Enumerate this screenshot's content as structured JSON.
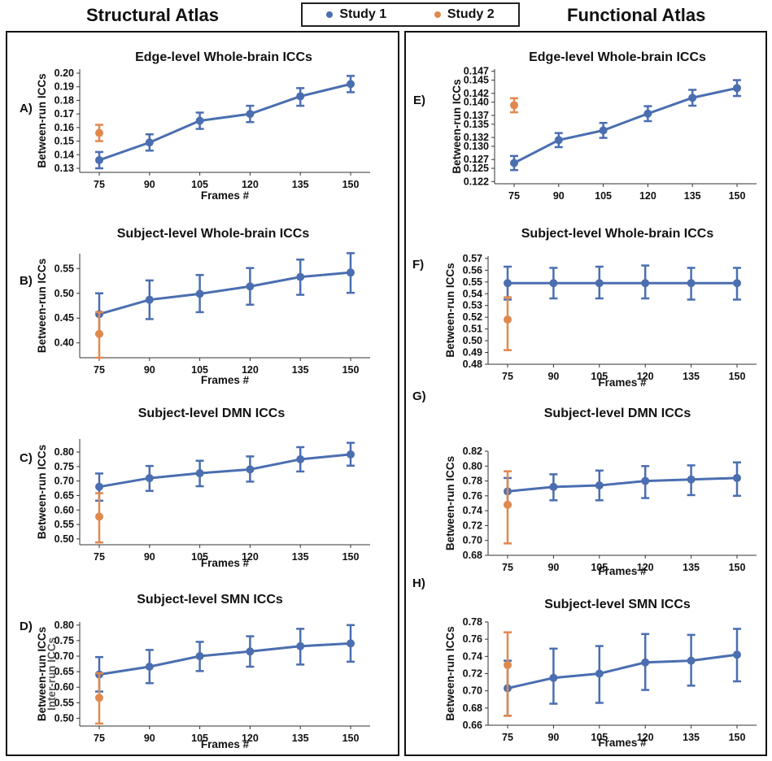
{
  "header": {
    "left_title": "Structural Atlas",
    "right_title": "Functional Atlas",
    "legend": [
      {
        "label": "Study 1",
        "color": "#4a6eb0"
      },
      {
        "label": "Study 2",
        "color": "#e0894f"
      }
    ]
  },
  "chart_data": [
    {
      "id": "A",
      "panel_label": "A)",
      "type": "line",
      "title": "Edge-level Whole-brain  ICCs",
      "xlabel": "Frames #",
      "ylabel": "Between-run ICCs",
      "x": [
        75,
        90,
        105,
        120,
        135,
        150
      ],
      "yticks": [
        "0.13",
        "0.14",
        "0.15",
        "0.16",
        "0.17",
        "0.18",
        "0.19",
        "0.20"
      ],
      "ylim": [
        0.127,
        0.203
      ],
      "series": [
        {
          "name": "Study 1",
          "color": "#4a6eb0",
          "values": [
            0.136,
            0.149,
            0.165,
            0.17,
            0.183,
            0.192
          ],
          "err_low": [
            0.13,
            0.143,
            0.159,
            0.164,
            0.176,
            0.186
          ],
          "err_high": [
            0.142,
            0.155,
            0.171,
            0.176,
            0.189,
            0.198
          ]
        },
        {
          "name": "Study 2",
          "color": "#e0894f",
          "x": [
            75
          ],
          "values": [
            0.156
          ],
          "err_low": [
            0.15
          ],
          "err_high": [
            0.162
          ]
        }
      ]
    },
    {
      "id": "B",
      "panel_label": "B)",
      "type": "line",
      "title": "Subject-level Whole-brain  ICCs",
      "xlabel": "Frames #",
      "ylabel": "Between-run ICCs",
      "x": [
        75,
        90,
        105,
        120,
        135,
        150
      ],
      "yticks": [
        "0.40",
        "0.45",
        "0.50",
        "0.55"
      ],
      "ylim": [
        0.37,
        0.58
      ],
      "series": [
        {
          "name": "Study 1",
          "color": "#4a6eb0",
          "values": [
            0.458,
            0.487,
            0.499,
            0.514,
            0.533,
            0.542
          ],
          "err_low": [
            0.418,
            0.448,
            0.462,
            0.477,
            0.497,
            0.501
          ],
          "err_high": [
            0.5,
            0.526,
            0.537,
            0.551,
            0.568,
            0.581
          ]
        },
        {
          "name": "Study 2",
          "color": "#e0894f",
          "x": [
            75
          ],
          "values": [
            0.418
          ],
          "err_low": [
            0.37
          ],
          "err_high": [
            0.462
          ]
        }
      ]
    },
    {
      "id": "C",
      "panel_label": "C)",
      "type": "line",
      "title": "Subject-level DMN  ICCs",
      "xlabel": "Frames #",
      "ylabel": "Between-run ICCs",
      "x": [
        75,
        90,
        105,
        120,
        135,
        150
      ],
      "yticks": [
        "0.50",
        "0.55",
        "0.60",
        "0.65",
        "0.70",
        "0.75",
        "0.80"
      ],
      "ylim": [
        0.48,
        0.845
      ],
      "series": [
        {
          "name": "Study 1",
          "color": "#4a6eb0",
          "values": [
            0.68,
            0.71,
            0.727,
            0.74,
            0.775,
            0.792
          ],
          "err_low": [
            0.632,
            0.666,
            0.682,
            0.698,
            0.733,
            0.753
          ],
          "err_high": [
            0.726,
            0.752,
            0.77,
            0.785,
            0.817,
            0.832
          ]
        },
        {
          "name": "Study 2",
          "color": "#e0894f",
          "x": [
            75
          ],
          "values": [
            0.577
          ],
          "err_low": [
            0.488
          ],
          "err_high": [
            0.658
          ]
        }
      ]
    },
    {
      "id": "D",
      "panel_label": "D)",
      "type": "line",
      "title": "Subject-level SMN  ICCs",
      "xlabel": "Frames #",
      "ylabel": "Between-run ICCs",
      "ylabel_overlay": "Inter-run ICCs",
      "x": [
        75,
        90,
        105,
        120,
        135,
        150
      ],
      "yticks": [
        "0.50",
        "0.55",
        "0.60",
        "0.65",
        "0.70",
        "0.75",
        "0.80"
      ],
      "ylim": [
        0.475,
        0.81
      ],
      "series": [
        {
          "name": "Study 1",
          "color": "#4a6eb0",
          "values": [
            0.641,
            0.666,
            0.7,
            0.715,
            0.732,
            0.741
          ],
          "err_low": [
            0.586,
            0.613,
            0.652,
            0.666,
            0.673,
            0.682
          ],
          "err_high": [
            0.697,
            0.72,
            0.746,
            0.764,
            0.788,
            0.8
          ]
        },
        {
          "name": "Study 2",
          "color": "#e0894f",
          "x": [
            75
          ],
          "values": [
            0.566
          ],
          "err_low": [
            0.483
          ],
          "err_high": [
            0.645
          ]
        }
      ]
    },
    {
      "id": "E",
      "panel_label": "E)",
      "type": "line",
      "title": "Edge-level Whole-brain  ICCs",
      "xlabel": "",
      "ylabel": "Between-run ICCs",
      "x": [
        75,
        90,
        105,
        120,
        135,
        150
      ],
      "yticks": [
        "0.122",
        "0.125",
        "0.127",
        "0.130",
        "0.132",
        "0.135",
        "0.137",
        "0.140",
        "0.142",
        "0.145",
        "0.147"
      ],
      "ylim": [
        0.1215,
        0.1475
      ],
      "series": [
        {
          "name": "Study 1",
          "color": "#4a6eb0",
          "values": [
            0.1262,
            0.1314,
            0.1336,
            0.1374,
            0.141,
            0.1432
          ],
          "err_low": [
            0.1246,
            0.1298,
            0.1319,
            0.1357,
            0.1392,
            0.1414
          ],
          "err_high": [
            0.1278,
            0.133,
            0.1353,
            0.1391,
            0.1428,
            0.145
          ]
        },
        {
          "name": "Study 2",
          "color": "#e0894f",
          "x": [
            75
          ],
          "values": [
            0.1393
          ],
          "err_low": [
            0.1377
          ],
          "err_high": [
            0.1409
          ]
        }
      ]
    },
    {
      "id": "F",
      "panel_label": "F)",
      "type": "line",
      "title": "Subject-level Whole-brain  ICCs",
      "xlabel": "Frames #",
      "ylabel": "Between-run ICCs",
      "x": [
        75,
        90,
        105,
        120,
        135,
        150
      ],
      "yticks": [
        "0.48",
        "0.49",
        "0.50",
        "0.51",
        "0.52",
        "0.53",
        "0.54",
        "0.55",
        "0.56",
        "0.57"
      ],
      "ylim": [
        0.48,
        0.572
      ],
      "series": [
        {
          "name": "Study 1",
          "color": "#4a6eb0",
          "values": [
            0.549,
            0.549,
            0.549,
            0.549,
            0.549,
            0.549
          ],
          "err_low": [
            0.535,
            0.536,
            0.536,
            0.536,
            0.535,
            0.535
          ],
          "err_high": [
            0.563,
            0.562,
            0.563,
            0.564,
            0.562,
            0.562
          ]
        },
        {
          "name": "Study 2",
          "color": "#e0894f",
          "x": [
            75
          ],
          "values": [
            0.518
          ],
          "err_low": [
            0.492
          ],
          "err_high": [
            0.537
          ]
        }
      ]
    },
    {
      "id": "G",
      "panel_label": "G)",
      "type": "line",
      "title": "Subject-level DMN  ICCs",
      "xlabel": "Frames #",
      "ylabel": "Between-run ICCs",
      "x": [
        75,
        90,
        105,
        120,
        135,
        150
      ],
      "yticks": [
        "0.68",
        "0.70",
        "0.72",
        "0.74",
        "0.76",
        "0.78",
        "0.80",
        "0.82"
      ],
      "ylim": [
        0.68,
        0.82
      ],
      "series": [
        {
          "name": "Study 1",
          "color": "#4a6eb0",
          "values": [
            0.766,
            0.772,
            0.774,
            0.78,
            0.782,
            0.784
          ],
          "err_low": [
            0.748,
            0.754,
            0.754,
            0.757,
            0.761,
            0.76
          ],
          "err_high": [
            0.784,
            0.789,
            0.794,
            0.8,
            0.801,
            0.805
          ]
        },
        {
          "name": "Study 2",
          "color": "#e0894f",
          "x": [
            75
          ],
          "values": [
            0.748
          ],
          "err_low": [
            0.696
          ],
          "err_high": [
            0.793
          ]
        }
      ]
    },
    {
      "id": "H",
      "panel_label": "H)",
      "type": "line",
      "title": "Subject-level SMN  ICCs",
      "xlabel": "Frames #",
      "ylabel": "Between-run ICCs",
      "x": [
        75,
        90,
        105,
        120,
        135,
        150
      ],
      "yticks": [
        "0.66",
        "0.68",
        "0.70",
        "0.72",
        "0.74",
        "0.76",
        "0.78"
      ],
      "ylim": [
        0.66,
        0.78
      ],
      "series": [
        {
          "name": "Study 1",
          "color": "#4a6eb0",
          "values": [
            0.703,
            0.715,
            0.72,
            0.733,
            0.735,
            0.742
          ],
          "err_low": [
            0.671,
            0.685,
            0.686,
            0.701,
            0.706,
            0.711
          ],
          "err_high": [
            0.735,
            0.749,
            0.752,
            0.766,
            0.765,
            0.772
          ]
        },
        {
          "name": "Study 2",
          "color": "#e0894f",
          "x": [
            75
          ],
          "values": [
            0.73
          ],
          "err_low": [
            0.671
          ],
          "err_high": [
            0.768
          ]
        }
      ]
    }
  ]
}
